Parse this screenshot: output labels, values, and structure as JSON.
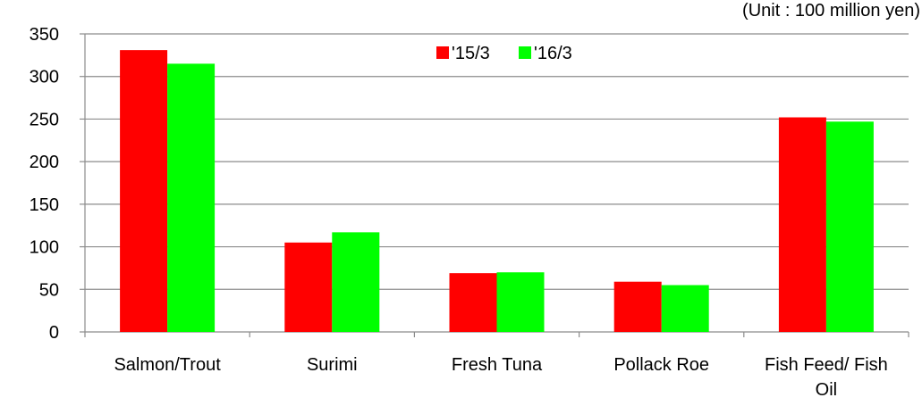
{
  "chart_data": {
    "type": "bar",
    "unit_note": "(Unit : 100 million yen)",
    "categories": [
      "Salmon/Trout",
      "Surimi",
      "Fresh Tuna",
      "Pollack Roe",
      "Fish Feed/ Fish Oil"
    ],
    "category_lines": [
      [
        "Salmon/Trout"
      ],
      [
        "Surimi"
      ],
      [
        "Fresh Tuna"
      ],
      [
        "Pollack Roe"
      ],
      [
        "Fish Feed/ Fish",
        "Oil"
      ]
    ],
    "series": [
      {
        "name": "'15/3",
        "color": "#ff0000",
        "values": [
          331,
          105,
          69,
          59,
          252
        ]
      },
      {
        "name": "'16/3",
        "color": "#00ff00",
        "values": [
          315,
          117,
          70,
          55,
          247
        ]
      }
    ],
    "ylim": [
      0,
      350
    ],
    "yticks": [
      0,
      50,
      100,
      150,
      200,
      250,
      300,
      350
    ],
    "grid": true,
    "legend_position": "top-center"
  }
}
